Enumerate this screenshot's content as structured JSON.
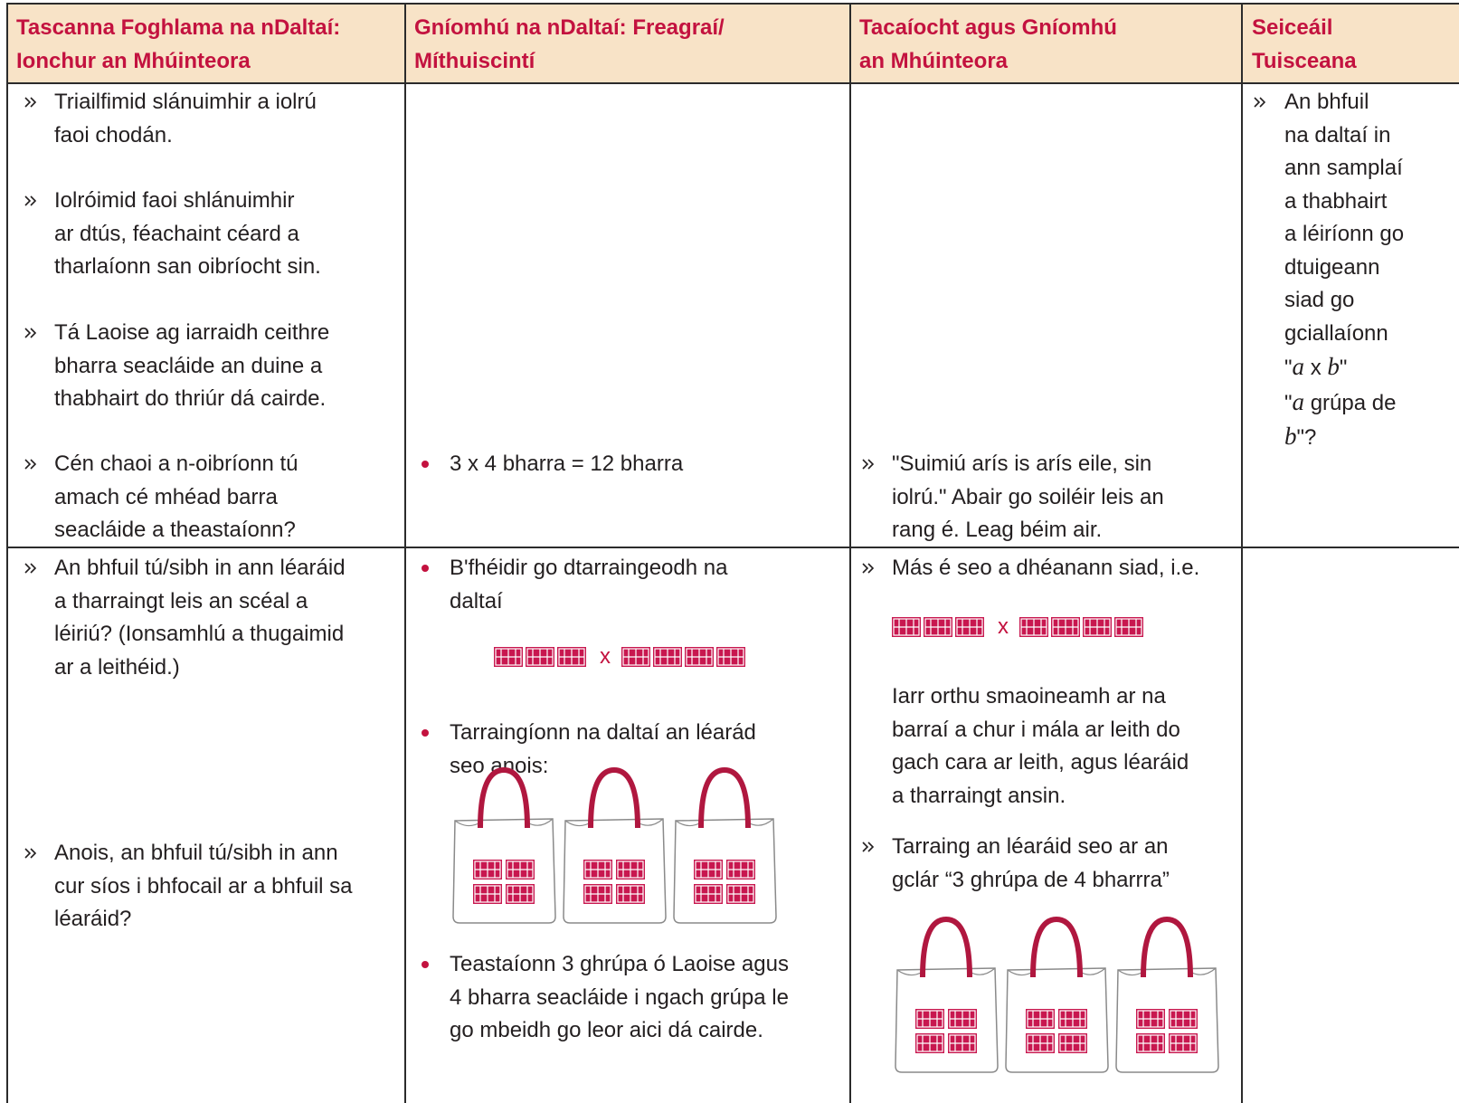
{
  "table": {
    "columns": [
      [
        "Tascanna Foghlama na nDaltaí:",
        "Ionchur an Mhúinteora"
      ],
      [
        "Gníomhú na nDaltaí: Freagraí/",
        "Míthuiscintí"
      ],
      [
        "Tacaíocht agus Gníomhú",
        "an Mhúinteora"
      ],
      [
        "Seiceáil",
        "Tuisceana"
      ]
    ],
    "rows": [
      {
        "cells": [
          [
            {
              "kind": "arrow",
              "lines": [
                "Triailfimid slánuimhir a iolrú",
                "faoi chodán."
              ]
            },
            {
              "kind": "arrow",
              "lines": [
                "Iolróimid faoi shlánuimhir",
                "ar dtús, féachaint céard a",
                "tharlaíonn san oibríocht sin."
              ]
            },
            {
              "kind": "arrow",
              "lines": [
                "Tá Laoise ag iarraidh ceithre",
                "bharra seacláide an duine a",
                "thabhairt do thriúr dá cairde."
              ]
            },
            {
              "kind": "arrow",
              "lines": [
                "Cén chaoi a n-oibríonn tú",
                "amach cé mhéad barra",
                "seacláide a theastaíonn?"
              ]
            }
          ],
          [
            {
              "kind": "bullet",
              "lines": [
                "3 x 4 bharra = 12 bharra"
              ]
            }
          ],
          [
            {
              "kind": "arrow",
              "lines": [
                "\"Suimiú arís is arís eile, sin",
                "iolrú.\" Abair go soiléir leis an",
                "rang é. Leag béim air."
              ]
            }
          ],
          [
            {
              "kind": "arrow",
              "lines": [
                "An bhfuil",
                "na daltaí in",
                "ann samplaí",
                "a thabhairt",
                "a léiríonn go",
                "dtuigeann",
                "siad go",
                "gciallaíonn",
                [
                  {
                    "text": "\""
                  },
                  {
                    "text": "a",
                    "style": "italic"
                  },
                  {
                    "text": " x "
                  },
                  {
                    "text": "b",
                    "style": "italic"
                  },
                  {
                    "text": "\""
                  }
                ],
                [
                  {
                    "text": "\""
                  },
                  {
                    "text": "a",
                    "style": "italic"
                  },
                  {
                    "text": " grúpa de"
                  }
                ],
                [
                  {
                    "text": "b",
                    "style": "italic"
                  },
                  {
                    "text": "\"?"
                  }
                ]
              ]
            }
          ]
        ]
      },
      {
        "cells": [
          [
            {
              "kind": "arrow",
              "lines": [
                "An bhfuil tú/sibh in ann léaráid",
                "a tharraingt leis an scéal a",
                "léiriú? (Ionsamhlú a thugaimid",
                "ar a leithéid.)"
              ]
            },
            {
              "kind": "arrow",
              "lines": [
                "Anois, an bhfuil tú/sibh in ann",
                "cur síos i bhfocail ar a bhfuil sa",
                "léaráid?"
              ]
            }
          ],
          [
            {
              "kind": "bullet",
              "lines": [
                "B'fhéidir go dtarraingeodh na",
                "daltaí"
              ]
            },
            {
              "kind": "bars",
              "left": 3,
              "operator": "x",
              "right": 4
            },
            {
              "kind": "bullet",
              "lines": [
                "Tarraingíonn na daltaí an léarád",
                "seo anois:"
              ]
            },
            {
              "kind": "bags",
              "bags": 3,
              "bars_per_bag": 4
            },
            {
              "kind": "bullet",
              "lines": [
                "Teastaíonn 3 ghrúpa ó Laoise agus",
                "4 bharra seacláide i ngach grúpa le",
                "go mbeidh go leor aici dá cairde."
              ]
            }
          ],
          [
            {
              "kind": "arrow",
              "lines": [
                "Más é seo a dhéanann siad, i.e."
              ]
            },
            {
              "kind": "bars",
              "left": 3,
              "operator": "x",
              "right": 4
            },
            {
              "kind": "plain",
              "lines": [
                "Iarr orthu smaoineamh ar na",
                "barraí a chur i mála ar leith do",
                "gach cara ar leith, agus léaráid",
                "a tharraingt ansin."
              ]
            },
            {
              "kind": "arrow",
              "lines": [
                "Tarraing an léaráid seo ar an",
                "gclár “3 ghrúpa de 4 bharrra”"
              ]
            },
            {
              "kind": "bags",
              "bags": 3,
              "bars_per_bag": 4
            }
          ],
          []
        ]
      }
    ]
  }
}
